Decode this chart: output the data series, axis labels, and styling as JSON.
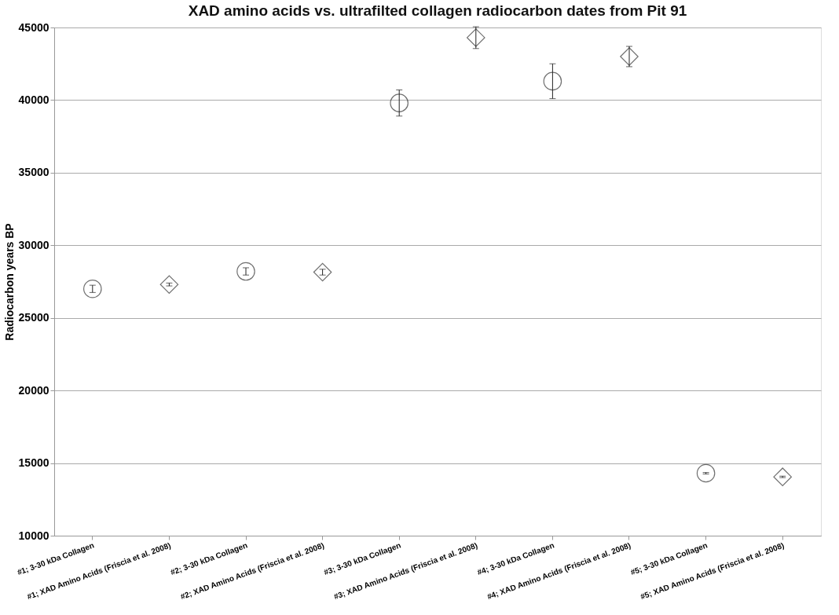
{
  "chart_data": {
    "type": "scatter",
    "title": "XAD amino acids vs. ultrafilted collagen radiocarbon dates from Pit 91",
    "ylabel": "Radiocarbon years BP",
    "categories": [
      "#1; 3-30 kDa Collagen",
      "#1; XAD Amino Acids (Friscia et al. 2008)",
      "#2; 3-30 kDa Collagen",
      "#2; XAD Amino Acids (Friscia et al. 2008)",
      "#3; 3-30 kDa Collagen",
      "#3; XAD Amino Acids (Friscia et al. 2008)",
      "#4; 3-30 kDa Collagen",
      "#4; XAD Amino Acids (Friscia et al. 2008)",
      "#5; 3-30 kDa Collagen",
      "#5; XAD Amino Acids (Friscia et al. 2008)"
    ],
    "series": [
      {
        "color": "#333333",
        "marker": "circle",
        "values": [
          27000,
          null,
          28200,
          null,
          39800,
          null,
          41300,
          null,
          14300,
          null
        ],
        "errors": [
          250,
          null,
          250,
          null,
          900,
          null,
          1200,
          null,
          50,
          null
        ]
      },
      {
        "color": "#333333",
        "marker": "diamond",
        "values": [
          null,
          27300,
          null,
          28150,
          null,
          44300,
          null,
          43000,
          null,
          14050
        ],
        "errors": [
          null,
          100,
          null,
          200,
          null,
          750,
          null,
          700,
          null,
          50
        ]
      }
    ],
    "ylim": [
      10000,
      45000
    ],
    "yticks": [
      10000,
      15000,
      20000,
      25000,
      30000,
      35000,
      40000,
      45000
    ],
    "grid": "y",
    "legend": false
  }
}
